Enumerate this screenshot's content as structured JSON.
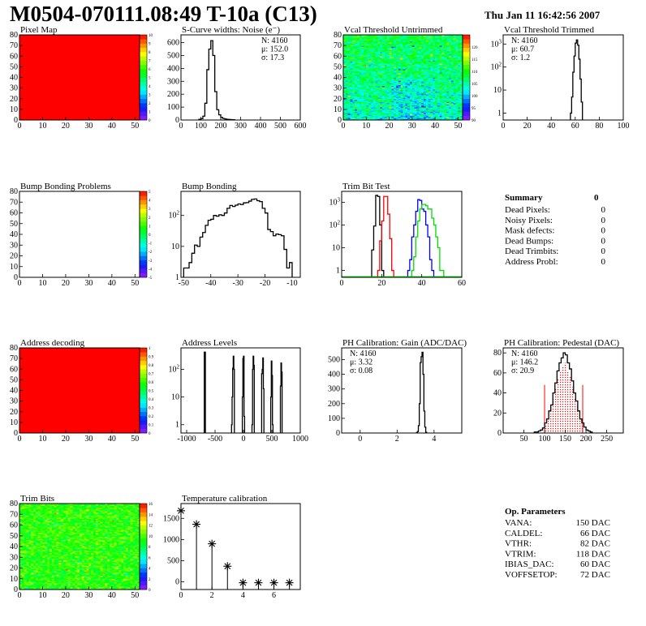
{
  "header": {
    "title": "M0504-070111.08:49 T-10a (C13)",
    "date": "Thu Jan 11 16:42:56 2007"
  },
  "summary": {
    "title": "Summary",
    "total": "0",
    "items": [
      {
        "label": "Dead Pixels:",
        "value": "0"
      },
      {
        "label": "Noisy Pixels:",
        "value": "0"
      },
      {
        "label": "Mask defects:",
        "value": "0"
      },
      {
        "label": "Dead Bumps:",
        "value": "0"
      },
      {
        "label": "Dead Trimbits:",
        "value": "0"
      },
      {
        "label": "Address Probl:",
        "value": "0"
      }
    ]
  },
  "op_parameters": {
    "title": "Op. Parameters",
    "items": [
      {
        "label": "VANA:",
        "value": "150 DAC"
      },
      {
        "label": "CALDEL:",
        "value": "66 DAC"
      },
      {
        "label": "VTHR:",
        "value": "82 DAC"
      },
      {
        "label": "VTRIM:",
        "value": "118 DAC"
      },
      {
        "label": "IBIAS_DAC:",
        "value": "60 DAC"
      },
      {
        "label": "VOFFSETOP:",
        "value": "72 DAC"
      }
    ]
  },
  "chart_data": [
    {
      "type": "heatmap",
      "title": "Pixel Map",
      "xlim": [
        0,
        52
      ],
      "ylim": [
        0,
        80
      ],
      "xticks": [
        0,
        10,
        20,
        30,
        40,
        50
      ],
      "yticks": [
        0,
        10,
        20,
        30,
        40,
        50,
        60,
        70,
        80
      ],
      "zlim": [
        0,
        10
      ],
      "zticks": [
        0,
        1,
        2,
        3,
        4,
        5,
        6,
        7,
        8,
        9,
        10
      ],
      "fill_value": 10
    },
    {
      "type": "histogram",
      "title": "S-Curve widths: Noise (e⁻)",
      "xlim": [
        0,
        600
      ],
      "ylim": [
        0,
        660
      ],
      "xticks": [
        0,
        100,
        200,
        300,
        400,
        500,
        600
      ],
      "yticks": [
        0,
        100,
        200,
        300,
        400,
        500,
        600
      ],
      "series": [
        {
          "color": "#000000",
          "bin_width": 10,
          "x": [
            90,
            100,
            110,
            120,
            130,
            140,
            150,
            160,
            170,
            180,
            190,
            200,
            210,
            220,
            230,
            240,
            250,
            260
          ],
          "y": [
            5,
            10,
            30,
            130,
            390,
            550,
            615,
            500,
            220,
            80,
            40,
            20,
            12,
            8,
            5,
            4,
            3,
            2
          ]
        }
      ],
      "stats": [
        {
          "text": "N: 4160"
        },
        {
          "text": "μ: 152.0"
        },
        {
          "text": "σ: 17.3"
        }
      ]
    },
    {
      "type": "heatmap",
      "title": "Vcal Threshold Untrimmed",
      "xlim": [
        0,
        52
      ],
      "ylim": [
        0,
        80
      ],
      "xticks": [
        0,
        10,
        20,
        30,
        40,
        50
      ],
      "yticks": [
        0,
        10,
        20,
        30,
        40,
        50,
        60,
        70,
        80
      ],
      "zlim": [
        90,
        125
      ],
      "zticks": [
        90,
        95,
        100,
        105,
        110,
        115,
        120
      ],
      "typical_range": [
        99,
        113
      ]
    },
    {
      "type": "histogram",
      "title": "Vcal Threshold Trimmed",
      "xlim": [
        0,
        100
      ],
      "ylim": [
        0.5,
        2500
      ],
      "log_y": true,
      "xticks": [
        0,
        20,
        40,
        60,
        80,
        100
      ],
      "yticks": [
        1,
        10,
        100,
        1000
      ],
      "series": [
        {
          "color": "#000000",
          "bin_width": 1,
          "x": [
            56,
            57,
            58,
            59,
            60,
            61,
            62,
            63,
            64,
            65
          ],
          "y": [
            1,
            5,
            60,
            300,
            1100,
            1500,
            900,
            220,
            30,
            3
          ]
        }
      ],
      "stats": [
        {
          "text": "N: 4160"
        },
        {
          "text": "μ: 60.7"
        },
        {
          "text": "σ:  1.2"
        }
      ]
    },
    {
      "type": "heatmap",
      "title": "Bump Bonding Problems",
      "xlim": [
        0,
        52
      ],
      "ylim": [
        0,
        80
      ],
      "xticks": [
        0,
        10,
        20,
        30,
        40,
        50
      ],
      "yticks": [
        0,
        10,
        20,
        30,
        40,
        50,
        60,
        70,
        80
      ],
      "zlim": [
        -5,
        5
      ],
      "zticks": [
        -5,
        -4,
        -3,
        -2,
        -1,
        0,
        1,
        2,
        3,
        4,
        5
      ]
    },
    {
      "type": "histogram",
      "title": "Bump Bonding",
      "xlim": [
        -51,
        -7
      ],
      "ylim": [
        1,
        600
      ],
      "log_y": true,
      "xticks": [
        -50,
        -40,
        -30,
        -20,
        -10
      ],
      "yticks": [
        1,
        10,
        100
      ],
      "series": [
        {
          "color": "#000000",
          "bin_width": 1,
          "x": [
            -50,
            -49,
            -48,
            -47,
            -46,
            -45,
            -44,
            -43,
            -42,
            -41,
            -40,
            -39,
            -38,
            -37,
            -36,
            -35,
            -34,
            -33,
            -32,
            -31,
            -30,
            -29,
            -28,
            -27,
            -26,
            -25,
            -24,
            -23,
            -22,
            -21,
            -20,
            -19,
            -18,
            -17,
            -16,
            -15,
            -14,
            -13,
            -12,
            -11
          ],
          "y": [
            2,
            2,
            3,
            6,
            11,
            10,
            20,
            28,
            48,
            70,
            75,
            100,
            95,
            105,
            100,
            120,
            170,
            210,
            195,
            215,
            235,
            225,
            255,
            260,
            290,
            330,
            340,
            300,
            280,
            170,
            120,
            35,
            30,
            22,
            25,
            24,
            22,
            8,
            2,
            3
          ]
        }
      ]
    },
    {
      "type": "histogram",
      "title": "Trim Bit Test",
      "xlim": [
        0,
        60
      ],
      "ylim": [
        0.5,
        3000
      ],
      "log_y": true,
      "xticks": [
        0,
        20,
        40,
        60
      ],
      "yticks": [
        1,
        10,
        100,
        1000
      ],
      "series": [
        {
          "color": "#000000",
          "bin_width": 1,
          "x": [
            15,
            16,
            17,
            18,
            19,
            20
          ],
          "y": [
            8,
            90,
            2000,
            1800,
            100,
            1
          ]
        },
        {
          "color": "#ff0000",
          "bin_width": 1,
          "x": [
            18,
            19,
            20,
            21,
            22,
            23,
            24,
            25
          ],
          "y": [
            1,
            20,
            150,
            1800,
            1800,
            300,
            25,
            1
          ]
        },
        {
          "color": "#0000ff",
          "bin_width": 1,
          "x": [
            33,
            34,
            35,
            36,
            37,
            38,
            39,
            40,
            41,
            42,
            43,
            44,
            45
          ],
          "y": [
            1,
            3,
            30,
            100,
            400,
            1300,
            1200,
            500,
            400,
            100,
            30,
            3,
            1
          ]
        },
        {
          "color": "#00dd00",
          "bin_width": 1,
          "x": [
            35,
            36,
            37,
            38,
            39,
            40,
            41,
            42,
            43,
            44,
            45,
            46,
            47,
            48,
            49,
            50
          ],
          "y": [
            1,
            4,
            30,
            150,
            500,
            800,
            800,
            700,
            500,
            500,
            200,
            100,
            30,
            10,
            1,
            1
          ]
        }
      ]
    },
    {
      "type": "heatmap",
      "title": "Address decoding",
      "xlim": [
        0,
        52
      ],
      "ylim": [
        0,
        80
      ],
      "xticks": [
        0,
        10,
        20,
        30,
        40,
        50
      ],
      "yticks": [
        0,
        10,
        20,
        30,
        40,
        50,
        60,
        70,
        80
      ],
      "zlim": [
        0,
        1
      ],
      "zticks": [
        0,
        0.1,
        0.2,
        0.3,
        0.4,
        0.5,
        0.6,
        0.7,
        0.8,
        0.9,
        1
      ],
      "fill_value": 1
    },
    {
      "type": "histogram",
      "title": "Address Levels",
      "xlim": [
        -1100,
        1000
      ],
      "ylim": [
        0.5,
        600
      ],
      "log_y": true,
      "xticks": [
        -1000,
        -500,
        0,
        500,
        1000
      ],
      "yticks": [
        1,
        10,
        100
      ],
      "series": [
        {
          "color": "#000000",
          "bin_width": 10,
          "x": [
            -690,
            -680,
            -210,
            -200,
            -190,
            -180,
            -170,
            -20,
            -10,
            0,
            10,
            150,
            160,
            170,
            180,
            320,
            330,
            340,
            350,
            480,
            490,
            500,
            510,
            650,
            660,
            670
          ],
          "y": [
            420,
            420,
            1,
            10,
            110,
            300,
            100,
            10,
            250,
            300,
            2,
            1,
            100,
            300,
            140,
            70,
            100,
            260,
            20,
            10,
            200,
            60,
            1,
            25,
            170,
            80
          ]
        }
      ]
    },
    {
      "type": "histogram",
      "title": "PH Calibration: Gain (ADC/DAC)",
      "xlim": [
        -1,
        5.5
      ],
      "ylim": [
        0,
        580
      ],
      "xticks": [
        0,
        2,
        4
      ],
      "yticks": [
        0,
        100,
        200,
        300,
        400,
        500
      ],
      "series": [
        {
          "color": "#000000",
          "bin_width": 0.05,
          "x": [
            3.05,
            3.1,
            3.15,
            3.2,
            3.25,
            3.3,
            3.35,
            3.4,
            3.45,
            3.5,
            3.55
          ],
          "y": [
            3,
            10,
            50,
            200,
            480,
            520,
            550,
            400,
            150,
            40,
            5
          ]
        }
      ],
      "stats": [
        {
          "text": "N: 4160"
        },
        {
          "text": "μ: 3.32"
        },
        {
          "text": "σ: 0.08"
        }
      ]
    },
    {
      "type": "histogram",
      "title": "PH Calibration: Pedestal (DAC)",
      "xlim": [
        0,
        290
      ],
      "ylim": [
        0,
        85
      ],
      "xticks": [
        50,
        100,
        150,
        200,
        250
      ],
      "yticks": [
        0,
        20,
        40,
        60,
        80
      ],
      "series": [
        {
          "color": "#000000",
          "bin_width": 5,
          "x": [
            75,
            80,
            85,
            90,
            95,
            100,
            105,
            110,
            115,
            120,
            125,
            130,
            135,
            140,
            145,
            150,
            155,
            160,
            165,
            170,
            175,
            180,
            185,
            190,
            195,
            200,
            205,
            210
          ],
          "y": [
            1,
            1,
            2,
            3,
            5,
            10,
            14,
            22,
            28,
            40,
            50,
            62,
            70,
            75,
            80,
            78,
            70,
            64,
            52,
            40,
            32,
            22,
            14,
            10,
            6,
            3,
            2,
            1
          ]
        }
      ],
      "fit_range": [
        100,
        192
      ],
      "fit_color": "#ff0000",
      "stats": [
        {
          "text": "N: 4160",
          "color": "#000000"
        },
        {
          "text": "μ: 146.2",
          "color": "#ff0000"
        },
        {
          "text": "σ: 20.9",
          "color": "#ff0000"
        }
      ]
    },
    {
      "type": "heatmap",
      "title": "Trim Bits",
      "xlim": [
        0,
        52
      ],
      "ylim": [
        0,
        80
      ],
      "xticks": [
        0,
        10,
        20,
        30,
        40,
        50
      ],
      "yticks": [
        0,
        10,
        20,
        30,
        40,
        50,
        60,
        70,
        80
      ],
      "zlim": [
        0,
        16
      ],
      "zticks": [
        0,
        2,
        4,
        6,
        8,
        10,
        12,
        14,
        16
      ],
      "typical_range": [
        7,
        12
      ]
    },
    {
      "type": "scatter",
      "title": "Temperature calibration",
      "xlim": [
        0,
        7.7
      ],
      "ylim": [
        -180,
        1850
      ],
      "xticks": [
        0,
        2,
        4,
        6
      ],
      "yticks": [
        0,
        500,
        1000,
        1500
      ],
      "marker": "asterisk",
      "x": [
        0,
        1,
        2,
        3,
        4,
        5,
        6,
        7
      ],
      "y": [
        1680,
        1360,
        900,
        370,
        -20,
        -20,
        -20,
        -20
      ]
    }
  ]
}
